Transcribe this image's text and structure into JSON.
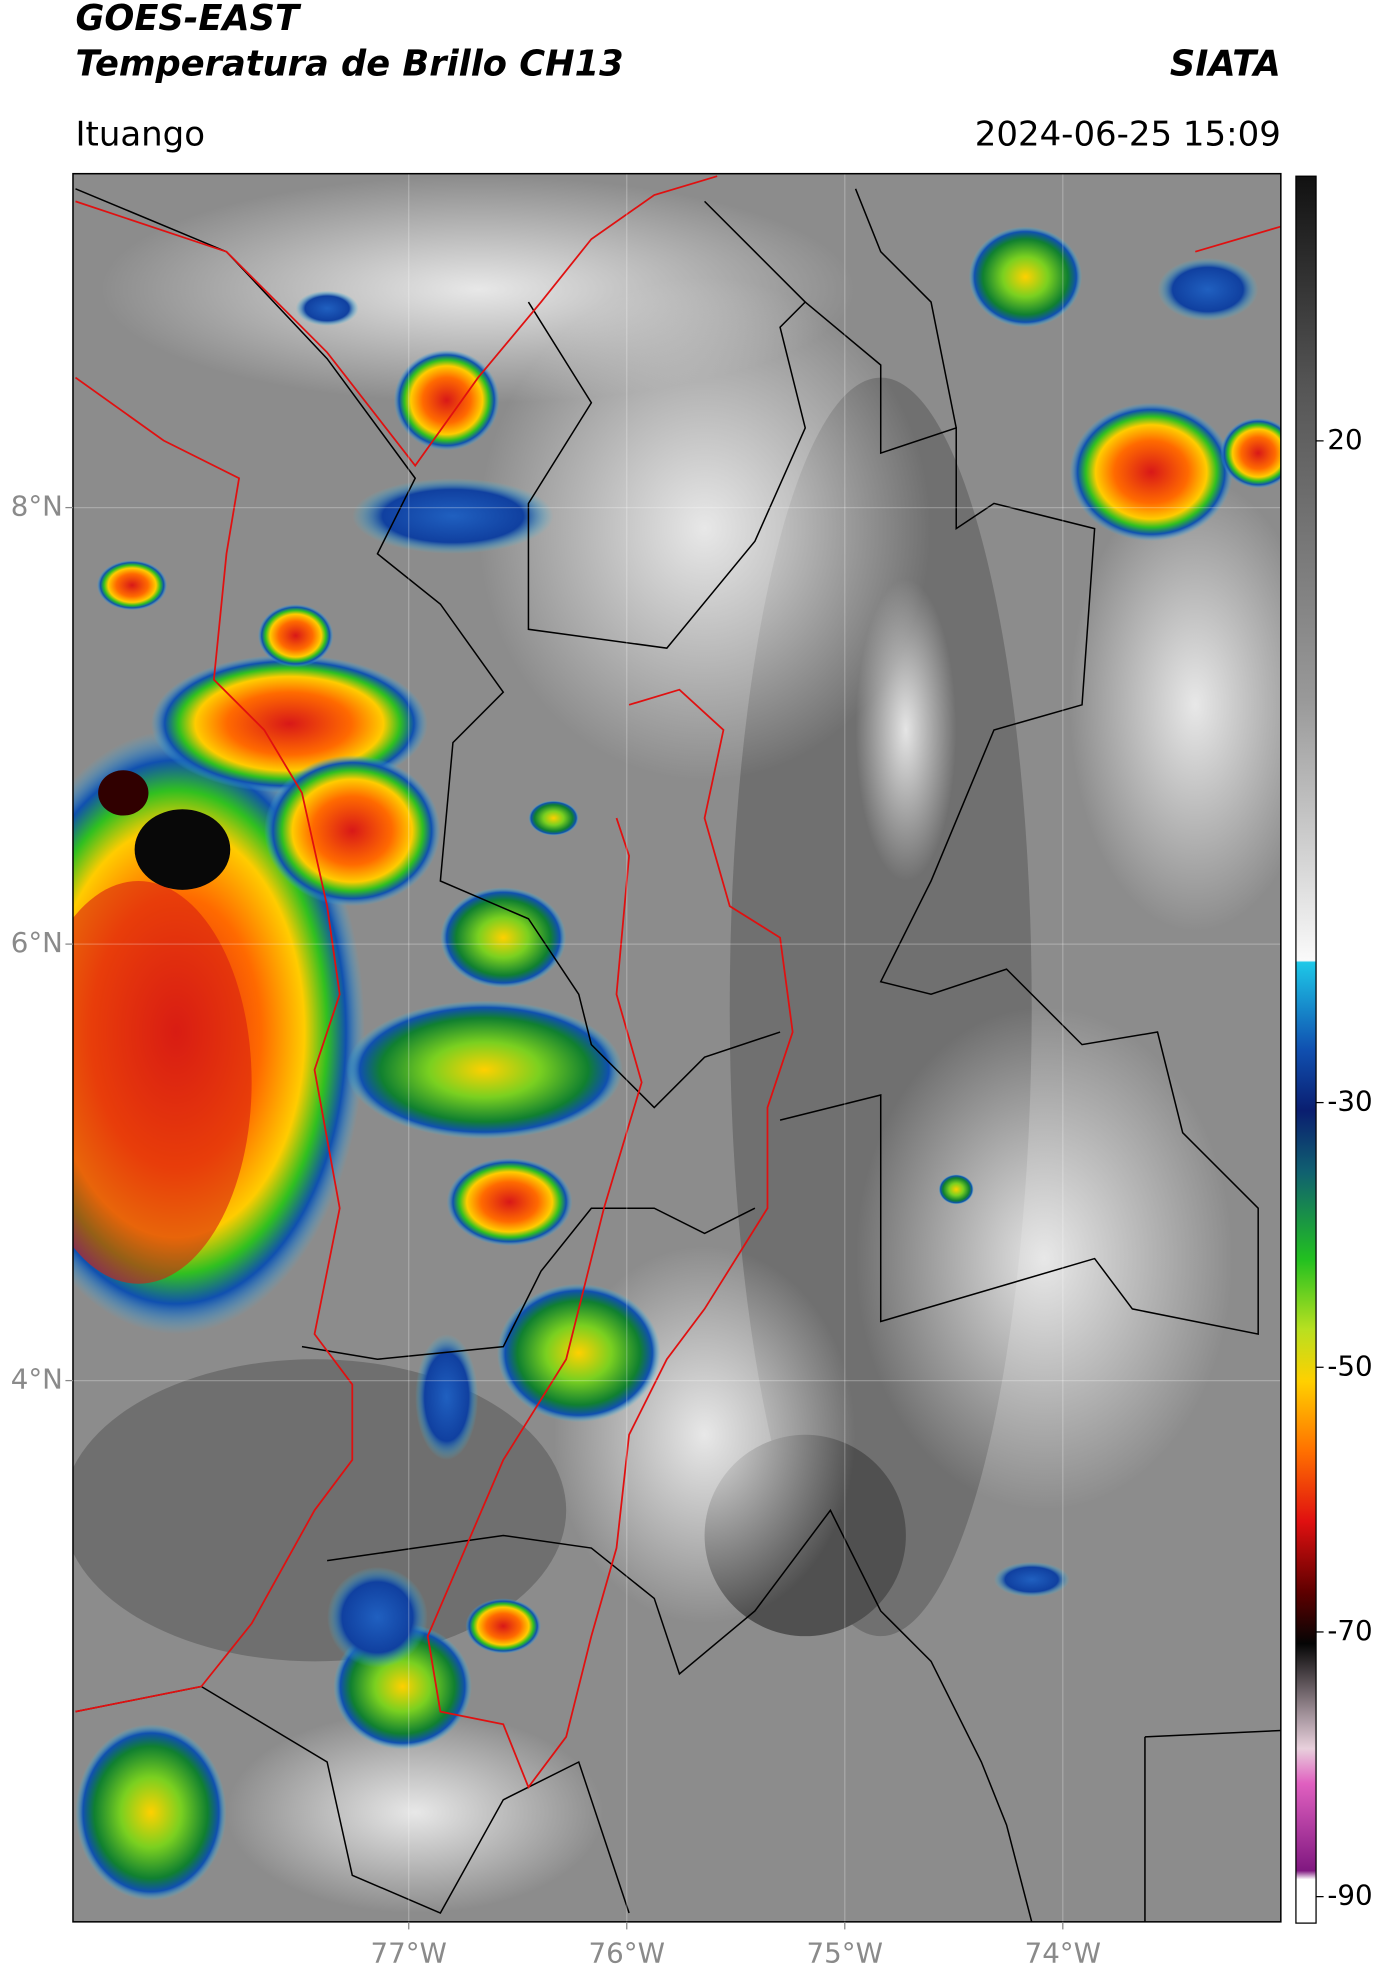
{
  "header": {
    "title": "GOES-EAST",
    "subtitle": "Temperatura de Brillo CH13",
    "agency": "SIATA",
    "location": "Ituango",
    "timestamp": "2024-06-25 15:09"
  },
  "map": {
    "xlim": [
      -78.54,
      -73.0
    ],
    "ylim": [
      1.52,
      9.53
    ],
    "xticks": [
      {
        "value": -77,
        "label": "77°W"
      },
      {
        "value": -76,
        "label": "76°W"
      },
      {
        "value": -75,
        "label": "75°W"
      },
      {
        "value": -74,
        "label": "74°W"
      }
    ],
    "yticks": [
      {
        "value": 4,
        "label": "4°N"
      },
      {
        "value": 6,
        "label": "6°N"
      },
      {
        "value": 8,
        "label": "8°N"
      }
    ],
    "grid": true
  },
  "colorbar": {
    "clim": [
      -92,
      40
    ],
    "ticks": [
      20,
      -30,
      -50,
      -70,
      -90
    ]
  }
}
